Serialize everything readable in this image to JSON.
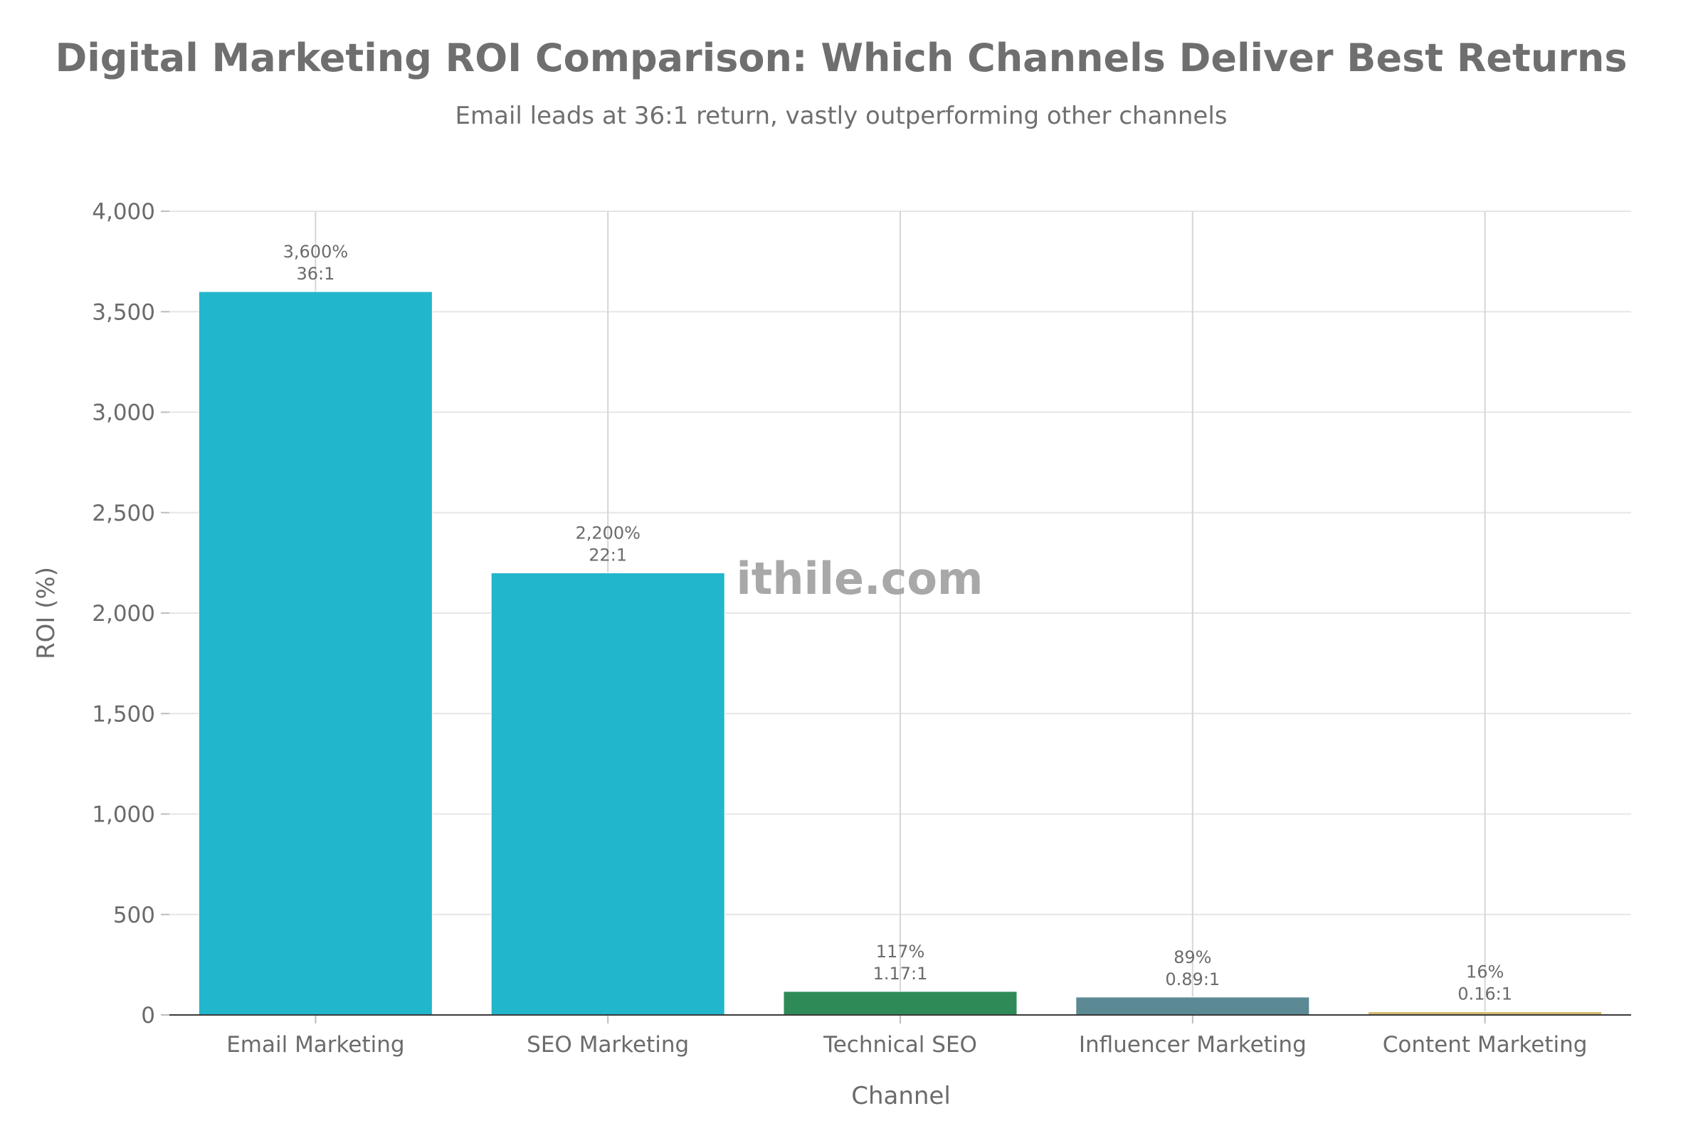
{
  "chart_data": {
    "type": "bar",
    "title": "Digital Marketing ROI Comparison: Which Channels Deliver Best Returns",
    "subtitle": "Email leads at 36:1 return, vastly outperforming other channels",
    "xlabel": "Channel",
    "ylabel": "ROI (%)",
    "ylim": [
      0,
      4000
    ],
    "yticks": [
      0,
      500,
      1000,
      1500,
      2000,
      2500,
      3000,
      3500,
      4000
    ],
    "ytick_labels": [
      "0",
      "500",
      "1,000",
      "1,500",
      "2,000",
      "2,500",
      "3,000",
      "3,500",
      "4,000"
    ],
    "categories": [
      "Email Marketing",
      "SEO Marketing",
      "Technical SEO",
      "Influencer Marketing",
      "Content Marketing"
    ],
    "values": [
      3600,
      2200,
      117,
      89,
      16
    ],
    "value_labels": [
      "3,600%",
      "2,200%",
      "117%",
      "89%",
      "16%"
    ],
    "ratio_labels": [
      "36:1",
      "22:1",
      "1.17:1",
      "0.89:1",
      "0.16:1"
    ],
    "colors": [
      "#21b6cc",
      "#21b6cc",
      "#2e8b57",
      "#5c8a94",
      "#d2b96a"
    ],
    "grid": true,
    "legend": "none",
    "watermark": "ithile.com"
  }
}
